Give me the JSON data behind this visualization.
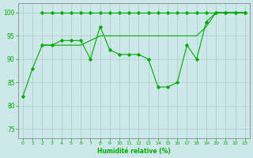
{
  "xlabel": "Humidité relative (%)",
  "background_color": "#cce8e8",
  "grid_color": "#aacccc",
  "line_color": "#00aa00",
  "line1_x": [
    0,
    1,
    2,
    3,
    4,
    5,
    6,
    7,
    8,
    9,
    10,
    11,
    12,
    13,
    14,
    15,
    16,
    17,
    18,
    19,
    20,
    21,
    22,
    23
  ],
  "line1_y": [
    82,
    88,
    93,
    93,
    94,
    94,
    94,
    90,
    97,
    92,
    91,
    91,
    91,
    90,
    84,
    84,
    85,
    93,
    90,
    98,
    100,
    100,
    100,
    100
  ],
  "line2_x": [
    2,
    3,
    4,
    5,
    6,
    7,
    8,
    9,
    10,
    11,
    12,
    13,
    14,
    15,
    16,
    17,
    18,
    19,
    20,
    21,
    22,
    23
  ],
  "line2_y": [
    100,
    100,
    100,
    100,
    100,
    100,
    100,
    100,
    100,
    100,
    100,
    100,
    100,
    100,
    100,
    100,
    100,
    100,
    100,
    100,
    100,
    100
  ],
  "line3_x": [
    2,
    3,
    4,
    5,
    6,
    7,
    8,
    9,
    10,
    11,
    12,
    13,
    14,
    15,
    16,
    17,
    18,
    19,
    20,
    21,
    22,
    23
  ],
  "line3_y": [
    93,
    93,
    93,
    93,
    93,
    94,
    95,
    95,
    95,
    95,
    95,
    95,
    95,
    95,
    95,
    95,
    95,
    97,
    100,
    100,
    100,
    100
  ],
  "ylim": [
    73,
    102
  ],
  "yticks": [
    75,
    80,
    85,
    90,
    95,
    100
  ],
  "xticks": [
    0,
    1,
    2,
    3,
    4,
    5,
    6,
    7,
    8,
    9,
    10,
    11,
    12,
    13,
    14,
    15,
    16,
    17,
    18,
    19,
    20,
    21,
    22,
    23
  ]
}
